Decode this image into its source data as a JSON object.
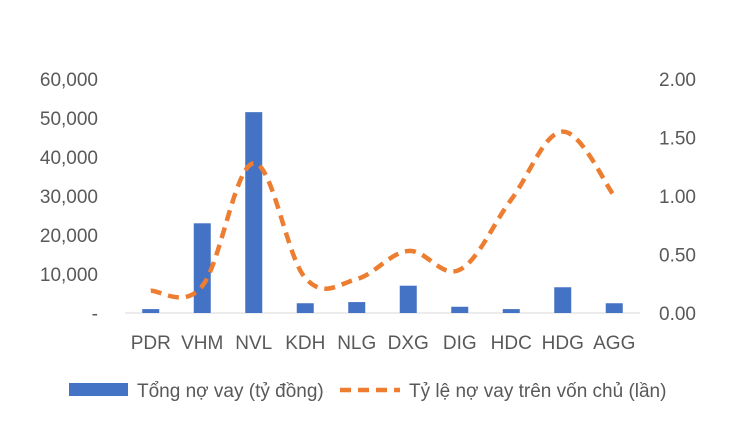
{
  "chart_data": {
    "type": "bar",
    "categories": [
      "PDR",
      "VHM",
      "NVL",
      "KDH",
      "NLG",
      "DXG",
      "DIG",
      "HDC",
      "HDG",
      "AGG"
    ],
    "series": [
      {
        "name": "Tổng nợ vay (tỷ đồng)",
        "type": "bar",
        "axis": "left",
        "color": "#4472C4",
        "values": [
          1000,
          23000,
          51500,
          2500,
          2800,
          7000,
          1600,
          1000,
          6600,
          2500
        ]
      },
      {
        "name": "Tỷ lệ nợ vay trên vốn chủ (lần)",
        "type": "line",
        "axis": "right",
        "style": "dashed",
        "color": "#ED7D31",
        "values": [
          0.19,
          0.23,
          1.28,
          0.3,
          0.29,
          0.53,
          0.37,
          0.97,
          1.55,
          1.0
        ]
      }
    ],
    "y_left": {
      "ylim": [
        0,
        60000
      ],
      "ticks": [
        0,
        10000,
        20000,
        30000,
        40000,
        50000,
        60000
      ],
      "tick_labels": [
        "-",
        "10,000",
        "20,000",
        "30,000",
        "40,000",
        "50,000",
        "60,000"
      ]
    },
    "y_right": {
      "ylim": [
        0,
        2
      ],
      "ticks": [
        0,
        0.5,
        1,
        1.5,
        2
      ],
      "tick_labels": [
        "0.00",
        "0.50",
        "1.00",
        "1.50",
        "2.00"
      ]
    },
    "grid": false,
    "legend": "bottom"
  }
}
